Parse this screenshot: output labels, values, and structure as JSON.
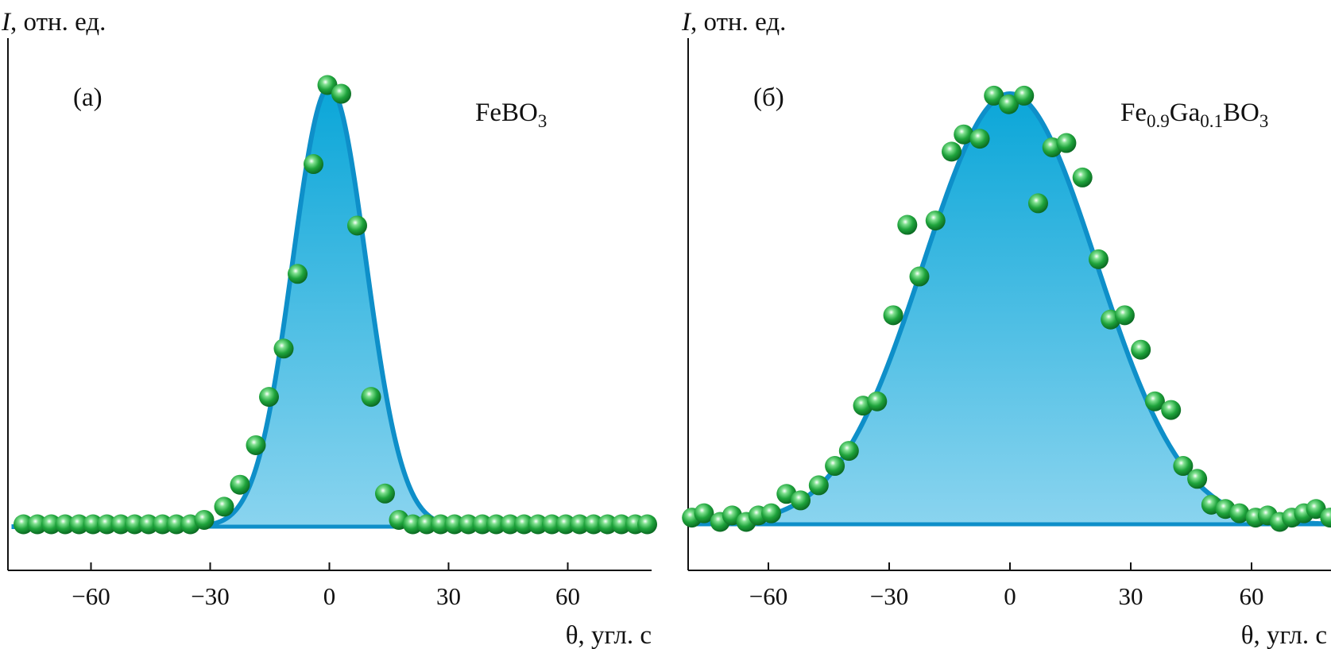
{
  "chart_data": [
    {
      "type": "scatter",
      "panel_label": "(а)",
      "sample": {
        "main": "FeBO",
        "sub": "3",
        "tail": ""
      },
      "ylabel": {
        "symbol": "I",
        "rest": ", отн. ед."
      },
      "xlabel": "θ, угл. с",
      "xlim": [
        -80,
        80
      ],
      "ylim": [
        0,
        1
      ],
      "xticks": [
        -60,
        -30,
        0,
        30,
        60
      ],
      "xtick_labels": [
        "−60",
        "−30",
        "0",
        "30",
        "60"
      ],
      "fit": {
        "center": 0,
        "sigma": 9.2
      },
      "points": [
        [
          -77,
          0
        ],
        [
          -73.5,
          0
        ],
        [
          -70,
          0
        ],
        [
          -66.5,
          0
        ],
        [
          -63,
          0
        ],
        [
          -59.5,
          0
        ],
        [
          -56,
          0
        ],
        [
          -52.5,
          0
        ],
        [
          -49,
          0
        ],
        [
          -45.5,
          0
        ],
        [
          -42,
          0
        ],
        [
          -38.5,
          0
        ],
        [
          -35,
          0
        ],
        [
          -31.5,
          0.01
        ],
        [
          -26.5,
          0.04
        ],
        [
          -22.5,
          0.09
        ],
        [
          -18.5,
          0.18
        ],
        [
          -15.2,
          0.29
        ],
        [
          -11.5,
          0.4
        ],
        [
          -8,
          0.57
        ],
        [
          -4,
          0.82
        ],
        [
          -0.5,
          1.0
        ],
        [
          3,
          0.98
        ],
        [
          7,
          0.68
        ],
        [
          10.5,
          0.29
        ],
        [
          14,
          0.07
        ],
        [
          17.5,
          0.01
        ],
        [
          21,
          0
        ],
        [
          24.5,
          0
        ],
        [
          28,
          0
        ],
        [
          31.5,
          0
        ],
        [
          35,
          0
        ],
        [
          38.5,
          0
        ],
        [
          42,
          0
        ],
        [
          45.5,
          0
        ],
        [
          49,
          0
        ],
        [
          52.5,
          0
        ],
        [
          56,
          0
        ],
        [
          59.5,
          0
        ],
        [
          63,
          0
        ],
        [
          66.5,
          0
        ],
        [
          70,
          0
        ],
        [
          73.5,
          0
        ],
        [
          77,
          0
        ],
        [
          80,
          0
        ]
      ],
      "colors": {
        "fill_top": "#0aa6d8",
        "fill_bottom": "#8ad4ef",
        "curve": "#0e8fc9",
        "points": "#1fa43c"
      }
    },
    {
      "type": "scatter",
      "panel_label": "(б)",
      "sample": {
        "main": "Fe",
        "sub": "0.9",
        "mid": "Ga",
        "sub2": "0.1",
        "tail": "BO",
        "sub3": "3"
      },
      "ylabel": {
        "symbol": "I",
        "rest": ", отн. ед."
      },
      "xlabel": "θ, угл. с",
      "xlim": [
        -80,
        80
      ],
      "ylim": [
        0,
        1
      ],
      "xticks": [
        -60,
        -30,
        0,
        30,
        60
      ],
      "xtick_labels": [
        "−60",
        "−30",
        "0",
        "30",
        "60"
      ],
      "fit": {
        "center": 0,
        "sigma": 21.5
      },
      "points": [
        [
          -79,
          0.01
        ],
        [
          -76,
          0.02
        ],
        [
          -72,
          0.0
        ],
        [
          -69,
          0.015
        ],
        [
          -65.5,
          0.0
        ],
        [
          -62.5,
          0.015
        ],
        [
          -59.3,
          0.02
        ],
        [
          -55.5,
          0.065
        ],
        [
          -52,
          0.05
        ],
        [
          -47.5,
          0.085
        ],
        [
          -43.5,
          0.13
        ],
        [
          -40,
          0.165
        ],
        [
          -36.5,
          0.27
        ],
        [
          -33,
          0.28
        ],
        [
          -29,
          0.48
        ],
        [
          -22.5,
          0.57
        ],
        [
          -25.5,
          0.69
        ],
        [
          -18.5,
          0.7
        ],
        [
          -14.5,
          0.86
        ],
        [
          -11.5,
          0.9
        ],
        [
          -7.5,
          0.89
        ],
        [
          -4,
          0.99
        ],
        [
          -0.3,
          0.97
        ],
        [
          3.5,
          0.99
        ],
        [
          7,
          0.74
        ],
        [
          10.5,
          0.87
        ],
        [
          14,
          0.88
        ],
        [
          18,
          0.8
        ],
        [
          22,
          0.61
        ],
        [
          25,
          0.47
        ],
        [
          28.5,
          0.48
        ],
        [
          32.5,
          0.4
        ],
        [
          36,
          0.28
        ],
        [
          40,
          0.26
        ],
        [
          43,
          0.13
        ],
        [
          46.5,
          0.1
        ],
        [
          50,
          0.04
        ],
        [
          53.5,
          0.03
        ],
        [
          57,
          0.02
        ],
        [
          61,
          0.01
        ],
        [
          64,
          0.015
        ],
        [
          67,
          0.0
        ],
        [
          70,
          0.01
        ],
        [
          73,
          0.02
        ],
        [
          76,
          0.03
        ],
        [
          79.5,
          0.01
        ]
      ],
      "colors": {
        "fill_top": "#0aa6d8",
        "fill_bottom": "#8ad4ef",
        "curve": "#0e8fc9",
        "points": "#1fa43c"
      }
    }
  ]
}
